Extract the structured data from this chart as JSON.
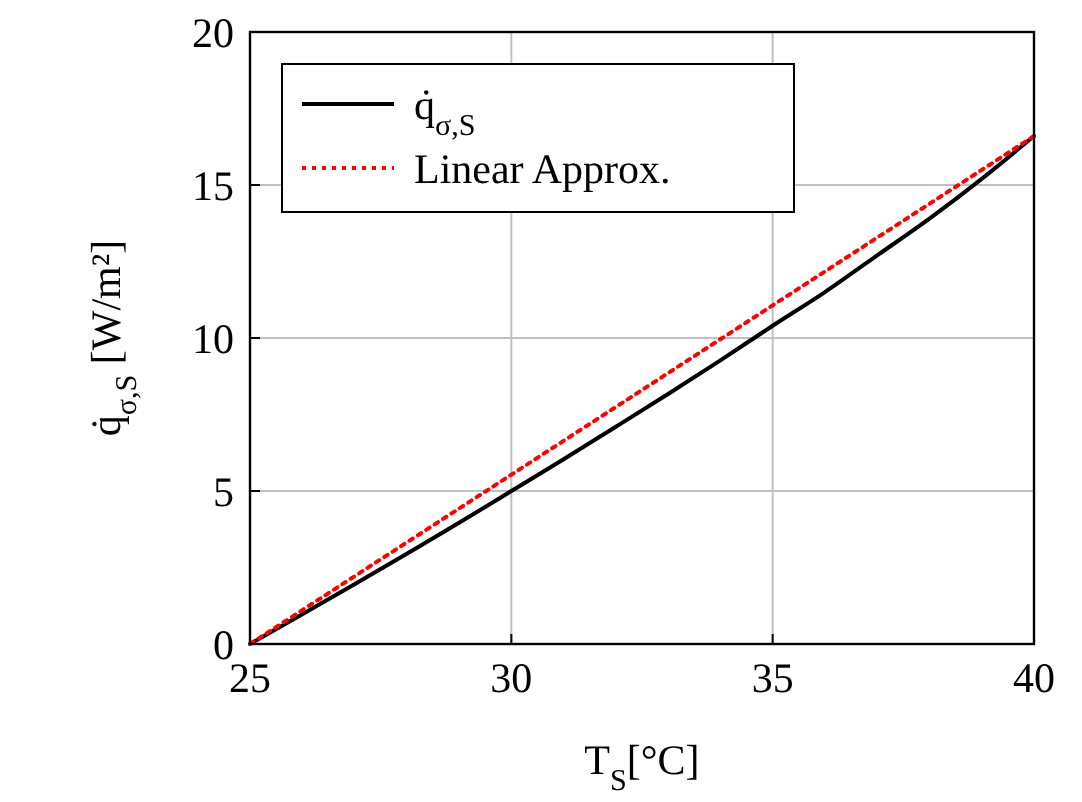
{
  "chart_data": {
    "type": "line",
    "xlabel": "T$_{S}$[°C]",
    "ylabel": "q̇$_{σ,S}$ [W/m²]",
    "x": [
      25,
      26,
      27,
      28,
      29,
      30,
      31,
      32,
      33,
      34,
      35,
      36,
      37,
      38,
      39,
      40
    ],
    "xlim": [
      25,
      40
    ],
    "xticks": [
      25,
      30,
      35,
      40
    ],
    "ylim": [
      0,
      20
    ],
    "yticks": [
      0,
      5,
      10,
      15,
      20
    ],
    "grid": true,
    "legend": "top left",
    "series": [
      {
        "name": "q̇$_{σ,S}$",
        "color": "#000000",
        "line_style": "solid",
        "values": [
          0,
          0.97,
          1.95,
          2.95,
          3.96,
          5.0,
          6.04,
          7.1,
          8.17,
          9.27,
          10.4,
          11.5,
          12.7,
          13.9,
          15.2,
          16.6
        ]
      },
      {
        "name": "Linear Approx.",
        "color": "#ff0000",
        "line_style": "dotted",
        "x": [
          25,
          40
        ],
        "values": [
          0,
          16.6
        ]
      }
    ]
  }
}
